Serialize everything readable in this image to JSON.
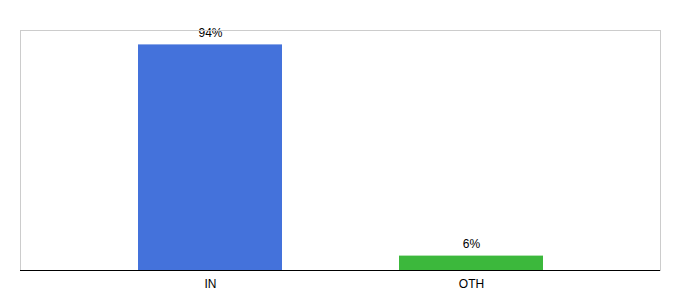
{
  "chart_data": {
    "type": "bar",
    "categories": [
      "IN",
      "OTH"
    ],
    "values": [
      94,
      6
    ],
    "colors": [
      "#4472db",
      "#3cb83c"
    ],
    "value_labels": [
      "94%",
      "6%"
    ],
    "data_labels": true,
    "ylim": [
      0,
      100
    ],
    "tick_labels": "x",
    "grid": false
  }
}
